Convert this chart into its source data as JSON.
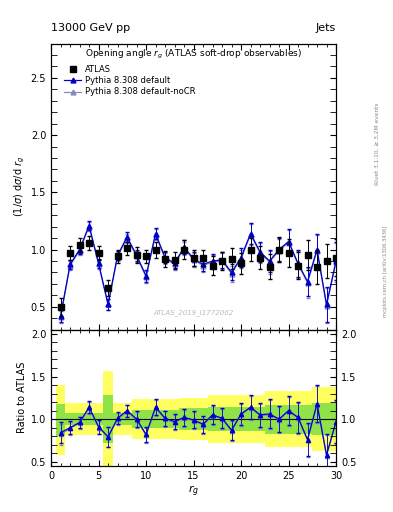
{
  "title_top": "13000 GeV pp",
  "title_right": "Jets",
  "plot_title": "Opening angle $r_g$ (ATLAS soft-drop observables)",
  "ylabel_main": "$(1/\\sigma)$ d$\\sigma$/d $r_g$",
  "ylabel_ratio": "Ratio to ATLAS",
  "xlabel": "$r_g$",
  "watermark": "ATLAS_2019_I1772062",
  "rivet_text": "Rivet 3.1.10, ≥ 3.2M events",
  "arxiv_text": "mcplots.cern.ch [arXiv:1306.3436]",
  "x": [
    1,
    2,
    3,
    4,
    5,
    6,
    7,
    8,
    9,
    10,
    11,
    12,
    13,
    14,
    15,
    16,
    17,
    18,
    19,
    20,
    21,
    22,
    23,
    24,
    25,
    26,
    27,
    28,
    29,
    30
  ],
  "atlas_y": [
    0.5,
    0.97,
    1.04,
    1.06,
    0.97,
    0.66,
    0.94,
    1.01,
    0.95,
    0.94,
    1.0,
    0.92,
    0.91,
    1.0,
    0.93,
    0.93,
    0.86,
    0.9,
    0.92,
    0.88,
    1.0,
    0.93,
    0.85,
    1.0,
    0.97,
    0.86,
    0.95,
    0.85,
    0.9,
    0.93
  ],
  "atlas_yerr": [
    0.08,
    0.06,
    0.06,
    0.06,
    0.06,
    0.07,
    0.06,
    0.06,
    0.07,
    0.06,
    0.07,
    0.07,
    0.07,
    0.08,
    0.07,
    0.07,
    0.08,
    0.08,
    0.09,
    0.09,
    0.1,
    0.1,
    0.11,
    0.11,
    0.12,
    0.12,
    0.13,
    0.15,
    0.15,
    0.16
  ],
  "py_default_y": [
    0.42,
    0.87,
    1.0,
    1.21,
    0.88,
    0.52,
    0.95,
    1.11,
    0.95,
    0.77,
    1.14,
    0.93,
    0.88,
    1.02,
    0.92,
    0.87,
    0.9,
    0.91,
    0.8,
    0.93,
    1.14,
    0.98,
    0.9,
    1.0,
    1.07,
    0.88,
    0.72,
    1.0,
    0.52,
    0.9
  ],
  "py_default_yerr": [
    0.05,
    0.04,
    0.04,
    0.04,
    0.04,
    0.05,
    0.04,
    0.04,
    0.05,
    0.05,
    0.05,
    0.05,
    0.05,
    0.06,
    0.06,
    0.06,
    0.06,
    0.07,
    0.07,
    0.08,
    0.09,
    0.09,
    0.1,
    0.1,
    0.11,
    0.12,
    0.13,
    0.14,
    0.15,
    0.17
  ],
  "py_nocr_y": [
    0.41,
    0.86,
    0.99,
    1.2,
    0.87,
    0.52,
    0.94,
    1.1,
    0.94,
    0.76,
    1.13,
    0.92,
    0.87,
    1.01,
    0.91,
    0.86,
    0.89,
    0.9,
    0.79,
    0.92,
    1.13,
    0.97,
    0.89,
    0.99,
    1.06,
    0.87,
    0.71,
    0.99,
    0.51,
    0.89
  ],
  "py_nocr_yerr": [
    0.05,
    0.04,
    0.04,
    0.04,
    0.04,
    0.05,
    0.04,
    0.04,
    0.05,
    0.05,
    0.05,
    0.05,
    0.05,
    0.06,
    0.06,
    0.06,
    0.06,
    0.07,
    0.07,
    0.08,
    0.09,
    0.09,
    0.1,
    0.1,
    0.11,
    0.12,
    0.13,
    0.14,
    0.15,
    0.17
  ],
  "ratio_default_y": [
    0.84,
    0.9,
    0.96,
    1.14,
    0.91,
    0.79,
    1.01,
    1.1,
    1.0,
    0.82,
    1.14,
    1.01,
    0.97,
    1.02,
    0.99,
    0.94,
    1.05,
    1.01,
    0.87,
    1.06,
    1.14,
    1.05,
    1.06,
    1.0,
    1.1,
    1.02,
    0.76,
    1.18,
    0.58,
    0.97
  ],
  "ratio_nocr_y": [
    0.82,
    0.89,
    0.95,
    1.13,
    0.9,
    0.79,
    1.0,
    1.09,
    0.99,
    0.81,
    1.13,
    1.0,
    0.96,
    1.01,
    0.98,
    0.93,
    1.04,
    1.0,
    0.86,
    1.05,
    1.13,
    1.04,
    1.05,
    0.99,
    1.09,
    1.01,
    0.75,
    1.17,
    0.57,
    0.96
  ],
  "ratio_default_yerr": [
    0.12,
    0.08,
    0.07,
    0.07,
    0.08,
    0.12,
    0.07,
    0.07,
    0.09,
    0.09,
    0.09,
    0.09,
    0.09,
    0.1,
    0.1,
    0.1,
    0.11,
    0.12,
    0.12,
    0.13,
    0.14,
    0.14,
    0.17,
    0.15,
    0.17,
    0.18,
    0.19,
    0.22,
    0.24,
    0.25
  ],
  "ratio_nocr_yerr": [
    0.12,
    0.08,
    0.07,
    0.07,
    0.08,
    0.12,
    0.07,
    0.07,
    0.09,
    0.09,
    0.09,
    0.09,
    0.09,
    0.1,
    0.1,
    0.1,
    0.11,
    0.12,
    0.12,
    0.13,
    0.14,
    0.14,
    0.17,
    0.15,
    0.17,
    0.18,
    0.19,
    0.22,
    0.24,
    0.25
  ],
  "green_band_low": [
    0.8,
    0.93,
    0.93,
    0.93,
    0.93,
    0.72,
    0.93,
    0.93,
    0.89,
    0.89,
    0.89,
    0.89,
    0.89,
    0.87,
    0.87,
    0.87,
    0.86,
    0.86,
    0.86,
    0.86,
    0.86,
    0.86,
    0.83,
    0.83,
    0.83,
    0.83,
    0.83,
    0.81,
    0.81,
    0.81
  ],
  "green_band_high": [
    1.18,
    1.07,
    1.07,
    1.07,
    1.07,
    1.28,
    1.07,
    1.07,
    1.11,
    1.11,
    1.11,
    1.11,
    1.11,
    1.13,
    1.13,
    1.13,
    1.14,
    1.14,
    1.14,
    1.14,
    1.14,
    1.14,
    1.17,
    1.17,
    1.17,
    1.17,
    1.17,
    1.19,
    1.19,
    1.19
  ],
  "yellow_band_low": [
    0.58,
    0.81,
    0.81,
    0.81,
    0.81,
    0.44,
    0.81,
    0.81,
    0.77,
    0.77,
    0.77,
    0.77,
    0.77,
    0.75,
    0.75,
    0.75,
    0.72,
    0.72,
    0.72,
    0.72,
    0.72,
    0.72,
    0.67,
    0.67,
    0.67,
    0.67,
    0.67,
    0.62,
    0.62,
    0.62
  ],
  "yellow_band_high": [
    1.4,
    1.19,
    1.19,
    1.19,
    1.19,
    1.56,
    1.19,
    1.19,
    1.23,
    1.23,
    1.23,
    1.23,
    1.23,
    1.25,
    1.25,
    1.25,
    1.28,
    1.28,
    1.28,
    1.28,
    1.28,
    1.28,
    1.33,
    1.33,
    1.33,
    1.33,
    1.33,
    1.38,
    1.38,
    1.38
  ],
  "color_atlas": "#000000",
  "color_default": "#0000cc",
  "color_nocr": "#8888bb",
  "color_green": "#33cc33",
  "color_yellow": "#ffff44",
  "xlim": [
    0,
    30
  ],
  "ylim_main": [
    0.3,
    2.8
  ],
  "ylim_ratio": [
    0.45,
    2.05
  ],
  "xticks": [
    0,
    5,
    10,
    15,
    20,
    25,
    30
  ],
  "yticks_main": [
    0.5,
    1.0,
    1.5,
    2.0,
    2.5
  ],
  "yticks_ratio": [
    0.5,
    1.0,
    1.5,
    2.0
  ]
}
